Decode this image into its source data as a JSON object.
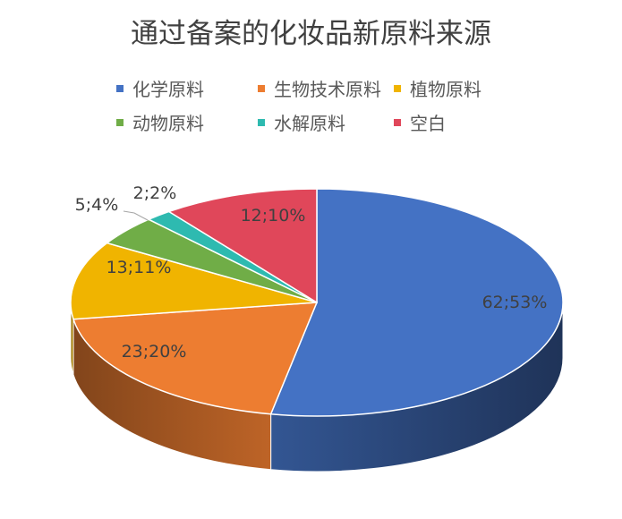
{
  "chart_data": {
    "type": "pie",
    "style": "3d",
    "title": "通过备案的化妆品新原料来源",
    "legend_position": "top",
    "slices": [
      {
        "name": "化学原料",
        "value": 62,
        "label": "62;53%",
        "color": "#4472C4"
      },
      {
        "name": "生物技术原料",
        "value": 23,
        "label": "23;20%",
        "color": "#ED7D31"
      },
      {
        "name": "植物原料",
        "value": 13,
        "label": "13;11%",
        "color": "#F0B400"
      },
      {
        "name": "动物原料",
        "value": 5,
        "label": "5;4%",
        "color": "#70AD47"
      },
      {
        "name": "水解原料",
        "value": 2,
        "label": "2;2%",
        "color": "#2EBAB0"
      },
      {
        "name": "空白",
        "value": 12,
        "label": "12;10%",
        "color": "#E0475A"
      }
    ]
  }
}
